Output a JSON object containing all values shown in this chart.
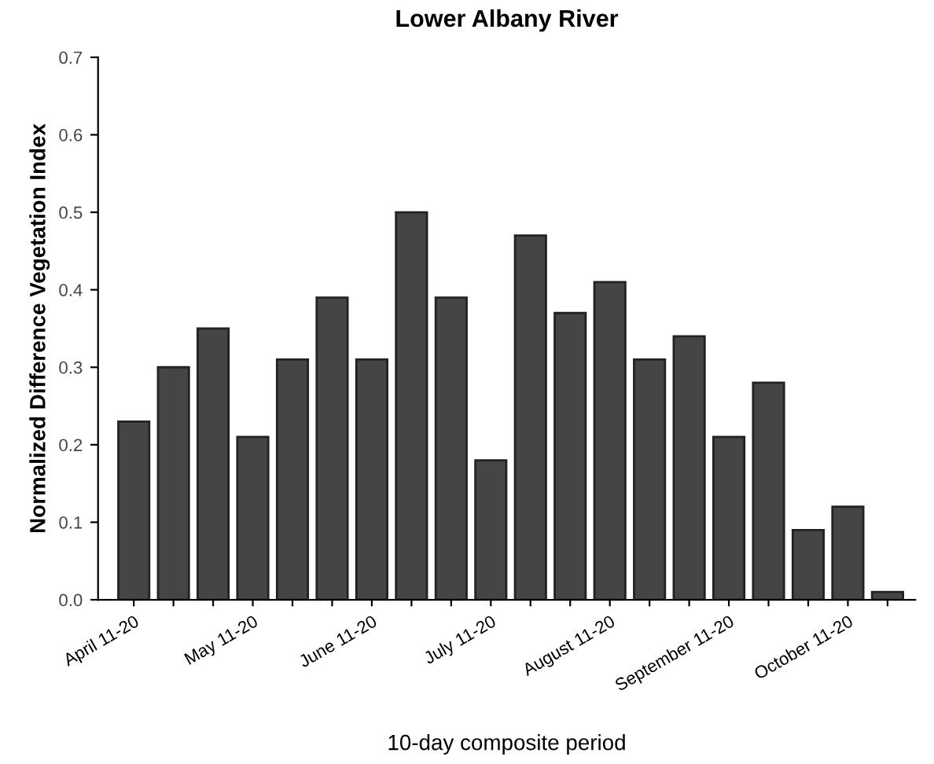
{
  "chart_data": {
    "type": "bar",
    "title": "Lower Albany River",
    "xlabel": "10-day composite period",
    "ylabel": "Normalized Difference Vegetation Index",
    "categories": [
      "April 11-20",
      null,
      null,
      "May 11-20",
      null,
      null,
      "June 11-20",
      null,
      null,
      "July 11-20",
      null,
      null,
      "August 11-20",
      null,
      null,
      "September 11-20",
      null,
      null,
      "October 11-20",
      null
    ],
    "values": [
      0.23,
      0.3,
      0.35,
      0.21,
      0.31,
      0.39,
      0.31,
      0.5,
      0.39,
      0.18,
      0.47,
      0.37,
      0.41,
      0.31,
      0.34,
      0.21,
      0.28,
      0.09,
      0.12,
      0.01
    ],
    "color": "#454643",
    "ylim": [
      0,
      0.7
    ],
    "yticks": [
      {
        "value": 0,
        "label": "0.0"
      },
      0.1,
      0.2,
      0.3,
      0.4,
      0.5,
      0.6,
      0.7
    ],
    "grid": false
  }
}
